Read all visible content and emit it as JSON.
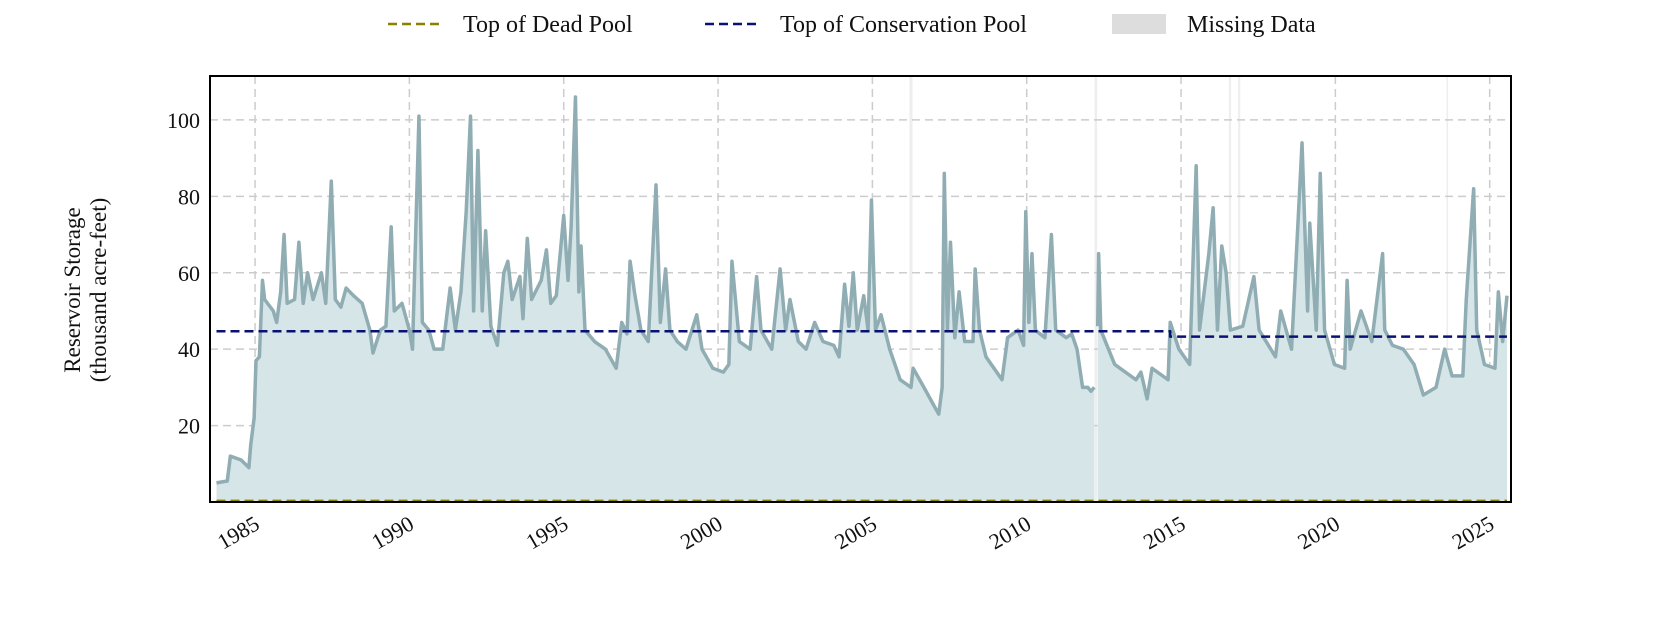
{
  "chart_data": {
    "type": "line",
    "y_label": [
      "Reservoir Storage",
      "(thousand acre-feet)"
    ],
    "xlim": [
      1983.54,
      2025.69
    ],
    "ylim": [
      0,
      111.5
    ],
    "xticks": [
      1985,
      1990,
      1995,
      2000,
      2005,
      2010,
      2015,
      2020,
      2025
    ],
    "yticks": [
      20,
      40,
      60,
      80,
      100
    ],
    "grid": true,
    "legend": "top",
    "series": [
      {
        "color": "#8fadb3",
        "fill": "#d6e5e8",
        "x": [
          1983.75,
          1984.1,
          1984.2,
          1984.55,
          1984.8,
          1984.86,
          1984.97,
          1985.03,
          1985.14,
          1985.24,
          1985.31,
          1985.59,
          1985.7,
          1985.83,
          1985.94,
          1986.04,
          1986.28,
          1986.42,
          1986.56,
          1986.7,
          1986.88,
          1987.15,
          1987.29,
          1987.47,
          1987.6,
          1987.78,
          1987.95,
          1988.19,
          1988.47,
          1988.72,
          1988.82,
          1989.06,
          1989.24,
          1989.41,
          1989.51,
          1989.76,
          1990.0,
          1990.1,
          1990.31,
          1990.42,
          1990.63,
          1990.8,
          1991.08,
          1991.32,
          1991.49,
          1991.67,
          1991.84,
          1991.98,
          1992.08,
          1992.22,
          1992.36,
          1992.47,
          1992.64,
          1992.85,
          1993.06,
          1993.19,
          1993.33,
          1993.58,
          1993.68,
          1993.82,
          1993.96,
          1994.27,
          1994.44,
          1994.58,
          1994.76,
          1995.0,
          1995.14,
          1995.24,
          1995.38,
          1995.49,
          1995.56,
          1995.69,
          1996.0,
          1996.35,
          1996.7,
          1996.88,
          1997.05,
          1997.15,
          1997.29,
          1997.5,
          1997.74,
          1997.99,
          1998.13,
          1998.3,
          1998.44,
          1998.68,
          1998.96,
          1999.31,
          1999.48,
          1999.83,
          2000.17,
          2000.35,
          2000.45,
          2000.69,
          2001.04,
          2001.25,
          2001.39,
          2001.74,
          2002.01,
          2002.19,
          2002.33,
          2002.6,
          2002.85,
          2003.13,
          2003.4,
          2003.75,
          2003.92,
          2004.1,
          2004.24,
          2004.38,
          2004.51,
          2004.72,
          2004.86,
          2004.97,
          2005.1,
          2005.28,
          2005.56,
          2005.9,
          2006.25,
          2006.32,
          2006.67,
          2007.01,
          2007.15,
          2007.26,
          2007.33,
          2007.43,
          2007.53,
          2007.67,
          2007.81,
          2007.99,
          2008.26,
          2008.33,
          2008.47,
          2008.68,
          2009.2,
          2009.38,
          2009.72,
          2009.9,
          2009.97,
          2010.07,
          2010.17,
          2010.28,
          2010.59,
          2010.8,
          2010.94,
          2011.28,
          2011.46,
          2011.63,
          2011.81,
          2011.98,
          2012.08,
          2012.19,
          2012.25,
          2012.3,
          2012.33,
          2012.4,
          2012.85,
          2013.54,
          2013.7,
          2013.9,
          2014.06,
          2014.58,
          2014.65,
          2014.93,
          2015.28,
          2015.49,
          2015.6,
          2015.9,
          2016.04,
          2016.18,
          2016.32,
          2016.46,
          2016.6,
          2017.0,
          2017.36,
          2017.53,
          2018.06,
          2018.23,
          2018.58,
          2018.92,
          2019.1,
          2019.17,
          2019.38,
          2019.51,
          2019.65,
          2019.97,
          2020.3,
          2020.38,
          2020.48,
          2020.83,
          2021.18,
          2021.53,
          2021.6,
          2021.85,
          2022.2,
          2022.55,
          2022.85,
          2023.26,
          2023.54,
          2023.78,
          2024.13,
          2024.24,
          2024.48,
          2024.58,
          2024.83,
          2025.17,
          2025.28,
          2025.42,
          2025.56
        ],
        "values": [
          5,
          5.5,
          12,
          11,
          9,
          15,
          22,
          37,
          38,
          58,
          53,
          50,
          47,
          55,
          70,
          52,
          53,
          68,
          52,
          60,
          53,
          60,
          52,
          84,
          53,
          51,
          56,
          54,
          52,
          45,
          39,
          45,
          46,
          72,
          50,
          52,
          45,
          40,
          101,
          47,
          45,
          40,
          40,
          56,
          45,
          55,
          76,
          101,
          50,
          92,
          50,
          71,
          46,
          41,
          60,
          63,
          53,
          59,
          48,
          69,
          53,
          58,
          66,
          52,
          54,
          75,
          58,
          72,
          106,
          55,
          67,
          45,
          42,
          40,
          35,
          47,
          44,
          63,
          55,
          45,
          42,
          83,
          47,
          61,
          45,
          42,
          40,
          49,
          40,
          35,
          34,
          36,
          63,
          42,
          40,
          59,
          45,
          40,
          61,
          45,
          53,
          42,
          40,
          47,
          42,
          41,
          38,
          57,
          46,
          60,
          45,
          54,
          45,
          79,
          45,
          49,
          40,
          32,
          30,
          35,
          30,
          25,
          23,
          30,
          86,
          45,
          68,
          43,
          55,
          42,
          42,
          61,
          45,
          38,
          32,
          43,
          45,
          41,
          76,
          47,
          65,
          45,
          43,
          70,
          45,
          43,
          44,
          40,
          30,
          30,
          29,
          30,
          null,
          46,
          65,
          45,
          36,
          32,
          34,
          27,
          35,
          32,
          47,
          40,
          36,
          88,
          45,
          65,
          77,
          45,
          67,
          60,
          45,
          46,
          59,
          45,
          38,
          50,
          40,
          94,
          50,
          73,
          45,
          86,
          45,
          36,
          35,
          58,
          40,
          50,
          42,
          65,
          45,
          41,
          40,
          36,
          28,
          30,
          40,
          33,
          33,
          53,
          82,
          45,
          36,
          35,
          55,
          42,
          54
        ]
      },
      {
        "name": "Top of Dead Pool",
        "color": "#8b8000",
        "linestyle": "dashed",
        "x": [
          1983.75,
          2025.56
        ],
        "values": [
          0.3,
          0.3
        ]
      },
      {
        "name": "Top of Conservation Pool",
        "color": "#0a1172",
        "linestyle": "dashed",
        "x": [
          1983.75,
          2014.65,
          2014.65,
          2025.56
        ],
        "values": [
          44.7,
          44.7,
          43.3,
          43.3
        ]
      }
    ],
    "missing_data": {
      "name": "Missing Data",
      "color": "#dddddd",
      "ranges": [
        [
          2006.2,
          2006.3
        ],
        [
          2012.2,
          2012.28
        ],
        [
          2016.55,
          2016.62
        ],
        [
          2016.85,
          2016.92
        ],
        [
          2023.6,
          2023.65
        ]
      ]
    }
  }
}
